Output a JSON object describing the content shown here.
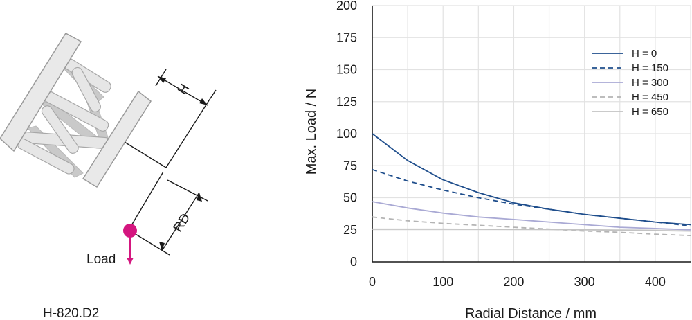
{
  "diagram": {
    "model": "H-820.D2",
    "load_label": "Load",
    "h_label": "H",
    "rd_label": "RD",
    "load_color": "#d4167f"
  },
  "chart_data": {
    "type": "line",
    "xlabel": "Radial Distance / mm",
    "ylabel": "Max. Load / N",
    "xlim": [
      0,
      450
    ],
    "ylim": [
      0,
      200
    ],
    "xticks": [
      0,
      100,
      200,
      300,
      400
    ],
    "yticks": [
      0,
      25,
      50,
      75,
      100,
      125,
      150,
      175,
      200
    ],
    "grid": true,
    "legend_position": "top-right",
    "series": [
      {
        "name": "H = 0",
        "color": "#1f4e8c",
        "dash": "solid",
        "x": [
          0,
          50,
          100,
          150,
          200,
          250,
          300,
          350,
          400,
          450
        ],
        "y": [
          100,
          79,
          64,
          54,
          46,
          41,
          37,
          34,
          31,
          29
        ]
      },
      {
        "name": "H = 150",
        "color": "#1f4e8c",
        "dash": "dashed",
        "x": [
          0,
          50,
          100,
          150,
          200,
          250,
          300,
          350,
          400,
          450
        ],
        "y": [
          72,
          63,
          56,
          50,
          45,
          41,
          37,
          34,
          31,
          28
        ]
      },
      {
        "name": "H = 300",
        "color": "#a9a9d4",
        "dash": "solid",
        "x": [
          0,
          50,
          100,
          150,
          200,
          250,
          300,
          350,
          400,
          450
        ],
        "y": [
          47,
          42,
          38,
          35,
          33,
          31,
          29,
          27,
          26,
          25
        ]
      },
      {
        "name": "H = 450",
        "color": "#b4b4b4",
        "dash": "dashed",
        "x": [
          0,
          50,
          100,
          150,
          200,
          250,
          300,
          350,
          400,
          450
        ],
        "y": [
          35,
          32,
          30,
          28.5,
          27,
          25.5,
          24,
          23,
          21.5,
          20.5
        ]
      },
      {
        "name": "H = 650",
        "color": "#c3c3c3",
        "dash": "solid",
        "x": [
          0,
          50,
          100,
          150,
          200,
          250,
          300,
          350,
          400,
          450
        ],
        "y": [
          25.5,
          25.5,
          25.5,
          25.4,
          25.3,
          25.2,
          25,
          24.7,
          24.4,
          24
        ]
      }
    ]
  }
}
